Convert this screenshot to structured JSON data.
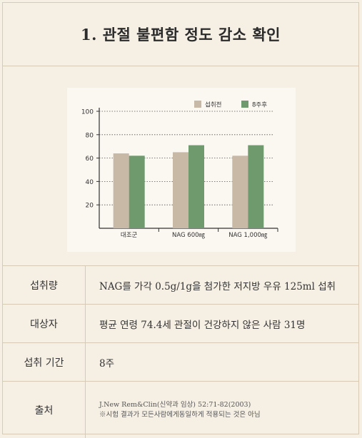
{
  "title": "1. 관절 불편함 정도 감소 확인",
  "chart_data": {
    "type": "bar",
    "categories": [
      "대조군",
      "NAG 600㎎",
      "NAG 1,000㎎"
    ],
    "series": [
      {
        "name": "섭취전",
        "values": [
          64,
          65,
          62
        ],
        "color": "#c8b8a6"
      },
      {
        "name": "8주후",
        "values": [
          62,
          71,
          71
        ],
        "color": "#6e9a6e"
      }
    ],
    "ylim": [
      0,
      100
    ],
    "yticks": [
      20,
      40,
      60,
      80,
      100
    ],
    "grid": "dotted",
    "legend": "top-right"
  },
  "info": {
    "intake_label": "섭취량",
    "intake_value": "NAG를 가각 0.5g/1g을 첨가한 저지방 우유 125ml 섭취",
    "subjects_label": "대상자",
    "subjects_value": "평균 연령 74.4세 관절이 건강하지 않은 사람 31명",
    "period_label": "섭취 기간",
    "period_value": "8주",
    "source_label": "출처",
    "source_line1": "J.New Rem&Clin(신약과 임상) 52:71-82(2003)",
    "source_line2": "※시험 결과가 모든사람에게동일하게 적용되는 것은 아님"
  }
}
